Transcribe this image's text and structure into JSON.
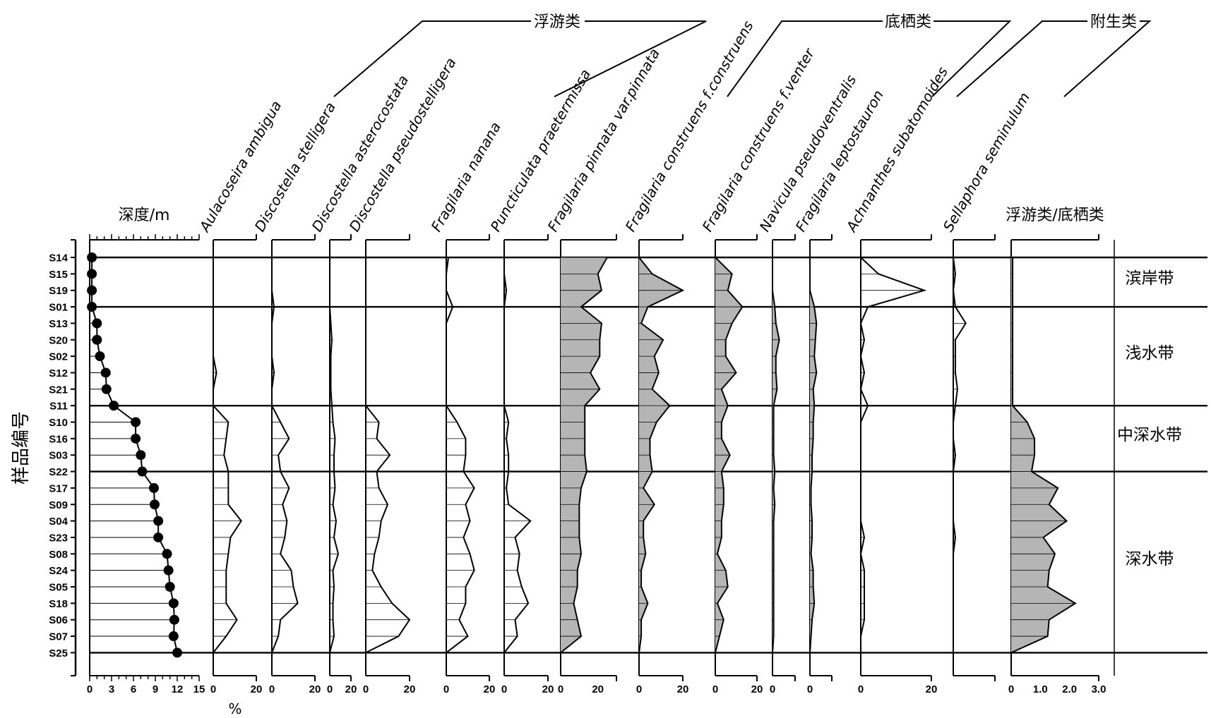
{
  "chart_data": {
    "type": "area",
    "ylabel": "样品编号",
    "x_unit_label": "%",
    "samples": [
      "S14",
      "S15",
      "S19",
      "S01",
      "S13",
      "S20",
      "S02",
      "S12",
      "S21",
      "S11",
      "S10",
      "S16",
      "S03",
      "S22",
      "S17",
      "S09",
      "S04",
      "S23",
      "S08",
      "S24",
      "S05",
      "S18",
      "S06",
      "S07",
      "S25"
    ],
    "groups": [
      {
        "name": "浮游类",
        "columns": [
          1,
          2,
          3,
          4,
          5,
          6
        ]
      },
      {
        "name": "底栖类",
        "columns": [
          7,
          8,
          9,
          10,
          11
        ]
      },
      {
        "name": "附生类",
        "columns": [
          12,
          13
        ]
      }
    ],
    "zones": [
      {
        "name": "滨岸带",
        "from": "S14",
        "to": "S01"
      },
      {
        "name": "浅水带",
        "from": "S01",
        "to": "S11"
      },
      {
        "name": "中深水带",
        "from": "S11",
        "to": "S22"
      },
      {
        "name": "深水带",
        "from": "S22",
        "to": "S25"
      }
    ],
    "columns": [
      {
        "name": "深度/m",
        "style": "dots",
        "xlim": [
          0,
          15
        ],
        "ticks": [
          "0",
          "3",
          "6",
          "9",
          "12",
          "15"
        ],
        "values": [
          0.3,
          0.3,
          0.3,
          0.3,
          1.0,
          1.0,
          1.4,
          2.2,
          2.3,
          3.3,
          6.3,
          6.3,
          7.0,
          7.2,
          8.8,
          8.9,
          9.4,
          9.4,
          10.6,
          10.8,
          11.0,
          11.5,
          11.6,
          11.5,
          12.0
        ]
      },
      {
        "name": "Aulacoseira ambigua",
        "style": "line",
        "xlim": [
          0,
          20
        ],
        "ticks": [
          "0",
          "20"
        ],
        "values": [
          0,
          0,
          0,
          0,
          0,
          0,
          0,
          1.5,
          0,
          0,
          7,
          6,
          5,
          7,
          7,
          7,
          13,
          8,
          7,
          6,
          6,
          6,
          11,
          6,
          0
        ]
      },
      {
        "name": "Discostella stelligera",
        "style": "line",
        "xlim": [
          0,
          20
        ],
        "ticks": [
          "0",
          "20"
        ],
        "values": [
          0,
          0,
          0,
          1,
          0,
          0,
          0,
          1,
          0,
          0,
          4,
          8,
          3,
          4,
          8,
          5,
          7,
          6,
          4,
          9,
          10,
          12,
          4,
          3,
          0
        ]
      },
      {
        "name": "Discostella asterocostata",
        "style": "line",
        "xlim": [
          0,
          20
        ],
        "ticks": [
          "0",
          "20"
        ],
        "values": [
          0,
          0,
          0,
          0,
          1,
          2,
          1,
          1,
          1,
          2,
          3,
          5,
          4,
          4,
          5,
          3,
          6,
          4,
          8,
          3,
          4,
          3,
          3,
          4,
          0
        ]
      },
      {
        "name": "Discostella pseudostelligera",
        "style": "line",
        "xlim": [
          0,
          20
        ],
        "ticks": [
          "0",
          "20"
        ],
        "values": [
          0,
          0,
          0,
          0,
          0,
          0,
          0,
          0,
          0,
          0,
          6,
          5,
          11,
          5,
          6,
          10,
          7,
          6,
          4,
          3,
          7,
          12,
          20,
          15,
          0
        ]
      },
      {
        "name": "Fragilaria nanana",
        "style": "line",
        "xlim": [
          0,
          20
        ],
        "ticks": [
          "0",
          "20"
        ],
        "values": [
          1,
          0,
          0,
          3,
          0,
          0,
          0,
          0,
          0,
          0,
          5,
          9,
          9,
          8,
          13,
          9,
          11,
          8,
          11,
          13,
          9,
          9,
          6,
          10,
          0
        ]
      },
      {
        "name": "Puncticulata praetermissa",
        "style": "line",
        "xlim": [
          0,
          20
        ],
        "ticks": [
          "0",
          "20"
        ],
        "values": [
          0,
          0,
          1,
          0,
          0,
          0,
          0,
          0,
          0,
          0,
          2,
          1,
          2,
          2,
          1,
          2,
          12,
          5,
          7,
          6,
          8,
          11,
          5,
          6,
          0
        ]
      },
      {
        "name": "Fragilaria pinnata var.pinnata",
        "style": "filled",
        "xlim": [
          0,
          30
        ],
        "ticks": [
          "0",
          "20"
        ],
        "values": [
          25,
          20,
          22,
          11,
          22,
          21,
          21,
          16,
          21,
          13,
          13,
          13,
          13,
          14,
          11,
          10,
          10,
          10,
          11,
          9,
          9,
          7,
          9,
          11,
          0
        ]
      },
      {
        "name": "Fragilaria construens f.construens",
        "style": "filled",
        "xlim": [
          0,
          20
        ],
        "ticks": [
          "0",
          "20"
        ],
        "values": [
          0,
          6,
          20,
          4,
          1,
          11,
          7,
          9,
          6,
          14,
          8,
          5,
          5,
          6,
          2,
          7,
          2,
          2,
          3,
          1,
          1,
          4,
          1,
          1,
          0
        ]
      },
      {
        "name": "Fragilaria construens f.venter",
        "style": "filled",
        "xlim": [
          0,
          20
        ],
        "ticks": [
          "0",
          "20"
        ],
        "values": [
          0,
          8,
          6,
          13,
          8,
          5,
          5,
          10,
          3,
          6,
          3,
          3,
          7,
          3,
          4,
          4,
          3,
          3,
          1,
          5,
          6,
          1,
          4,
          2,
          0
        ]
      },
      {
        "name": "Navicula pseudoventralis",
        "style": "filled",
        "xlim": [
          0,
          20
        ],
        "ticks": [
          "0"
        ],
        "values": [
          0,
          0,
          0,
          2,
          3,
          6,
          3,
          3,
          4,
          1,
          1,
          1,
          1,
          2,
          1,
          2,
          1,
          1,
          1,
          1,
          1,
          1,
          1,
          1,
          0
        ]
      },
      {
        "name": "Fragilaria leptostauron",
        "style": "filled",
        "xlim": [
          0,
          20
        ],
        "ticks": [
          "0"
        ],
        "values": [
          0,
          0,
          0,
          4,
          6,
          5,
          4,
          6,
          3,
          4,
          3,
          3,
          2,
          2,
          1,
          1,
          2,
          2,
          1,
          3,
          3,
          4,
          2,
          1,
          0
        ]
      },
      {
        "name": "Achnanthes subatomoides",
        "style": "line",
        "xlim": [
          0,
          20
        ],
        "ticks": [
          "0",
          "20"
        ],
        "values": [
          0,
          5,
          18,
          2,
          0,
          1,
          0,
          1,
          0,
          2,
          0,
          0,
          0,
          0,
          0,
          0,
          0,
          1,
          0,
          1,
          1,
          1,
          1,
          0,
          0
        ]
      },
      {
        "name": "Sellaphora seminulum",
        "style": "line",
        "xlim": [
          0,
          20
        ],
        "ticks": [],
        "values": [
          0,
          1,
          0,
          1,
          6,
          1,
          1,
          1,
          2,
          1,
          0,
          0,
          1,
          0,
          0,
          0,
          0,
          1,
          0,
          0,
          0,
          0,
          0,
          0,
          0
        ]
      },
      {
        "name": "浮游类/底栖类",
        "style": "filled",
        "xlim": [
          0,
          3
        ],
        "ticks": [
          "0",
          "1.0",
          "2.0",
          "3.0"
        ],
        "values": [
          0.05,
          0.05,
          0.05,
          0.05,
          0.05,
          0.05,
          0.05,
          0.05,
          0.05,
          0.05,
          0.55,
          0.8,
          0.8,
          0.7,
          1.6,
          1.3,
          1.9,
          1.1,
          1.5,
          1.3,
          1.25,
          2.2,
          1.3,
          1.25,
          0
        ]
      }
    ]
  }
}
